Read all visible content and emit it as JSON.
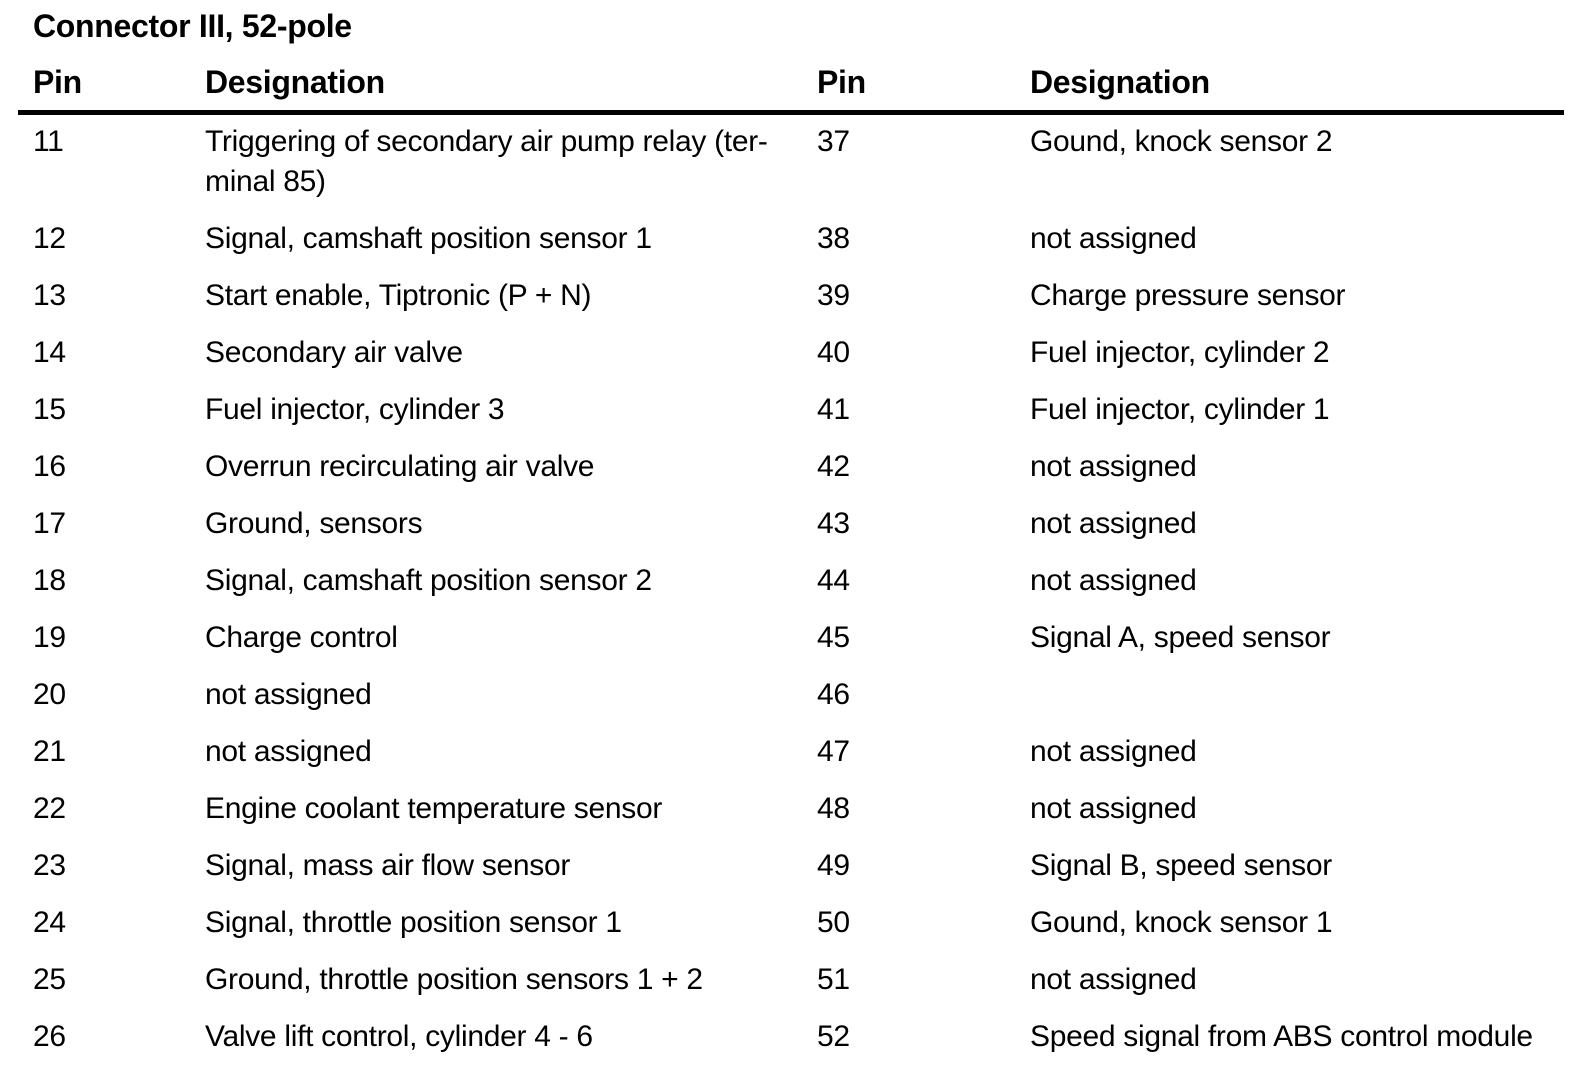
{
  "page": {
    "title": "Connector III, 52-pole",
    "background_color": "#ffffff",
    "text_color": "#000000"
  },
  "table": {
    "headers": {
      "pin_left": "Pin",
      "designation_left": "Designation",
      "pin_right": "Pin",
      "designation_right": "Designation"
    },
    "rows": [
      {
        "left_pin": "11",
        "left_designation": "Triggering of secondary air pump relay (ter-\nminal 85)",
        "right_pin": "37",
        "right_designation": "Gound, knock sensor 2"
      },
      {
        "left_pin": "12",
        "left_designation": "Signal, camshaft position sensor 1",
        "right_pin": "38",
        "right_designation": "not assigned"
      },
      {
        "left_pin": "13",
        "left_designation": "Start enable, Tiptronic (P + N)",
        "right_pin": "39",
        "right_designation": "Charge pressure sensor"
      },
      {
        "left_pin": "14",
        "left_designation": "Secondary air valve",
        "right_pin": "40",
        "right_designation": "Fuel injector, cylinder 2"
      },
      {
        "left_pin": "15",
        "left_designation": "Fuel injector, cylinder 3",
        "right_pin": "41",
        "right_designation": "Fuel injector, cylinder 1"
      },
      {
        "left_pin": "16",
        "left_designation": "Overrun recirculating air valve",
        "right_pin": "42",
        "right_designation": "not assigned"
      },
      {
        "left_pin": "17",
        "left_designation": "Ground, sensors",
        "right_pin": "43",
        "right_designation": "not assigned"
      },
      {
        "left_pin": "18",
        "left_designation": "Signal, camshaft position sensor 2",
        "right_pin": "44",
        "right_designation": "not assigned"
      },
      {
        "left_pin": "19",
        "left_designation": "Charge control",
        "right_pin": "45",
        "right_designation": "Signal A, speed sensor"
      },
      {
        "left_pin": "20",
        "left_designation": "not assigned",
        "right_pin": "46",
        "right_designation": ""
      },
      {
        "left_pin": "21",
        "left_designation": "not assigned",
        "right_pin": "47",
        "right_designation": "not assigned"
      },
      {
        "left_pin": "22",
        "left_designation": "Engine coolant temperature sensor",
        "right_pin": "48",
        "right_designation": "not assigned"
      },
      {
        "left_pin": "23",
        "left_designation": "Signal, mass air flow sensor",
        "right_pin": "49",
        "right_designation": "Signal B, speed sensor"
      },
      {
        "left_pin": "24",
        "left_designation": "Signal, throttle position sensor 1",
        "right_pin": "50",
        "right_designation": "Gound, knock sensor 1"
      },
      {
        "left_pin": "25",
        "left_designation": "Ground, throttle position sensors 1 + 2",
        "right_pin": "51",
        "right_designation": "not assigned"
      },
      {
        "left_pin": "26",
        "left_designation": "Valve lift control, cylinder 4 - 6",
        "right_pin": "52",
        "right_designation": "Speed signal from ABS control module"
      }
    ]
  }
}
